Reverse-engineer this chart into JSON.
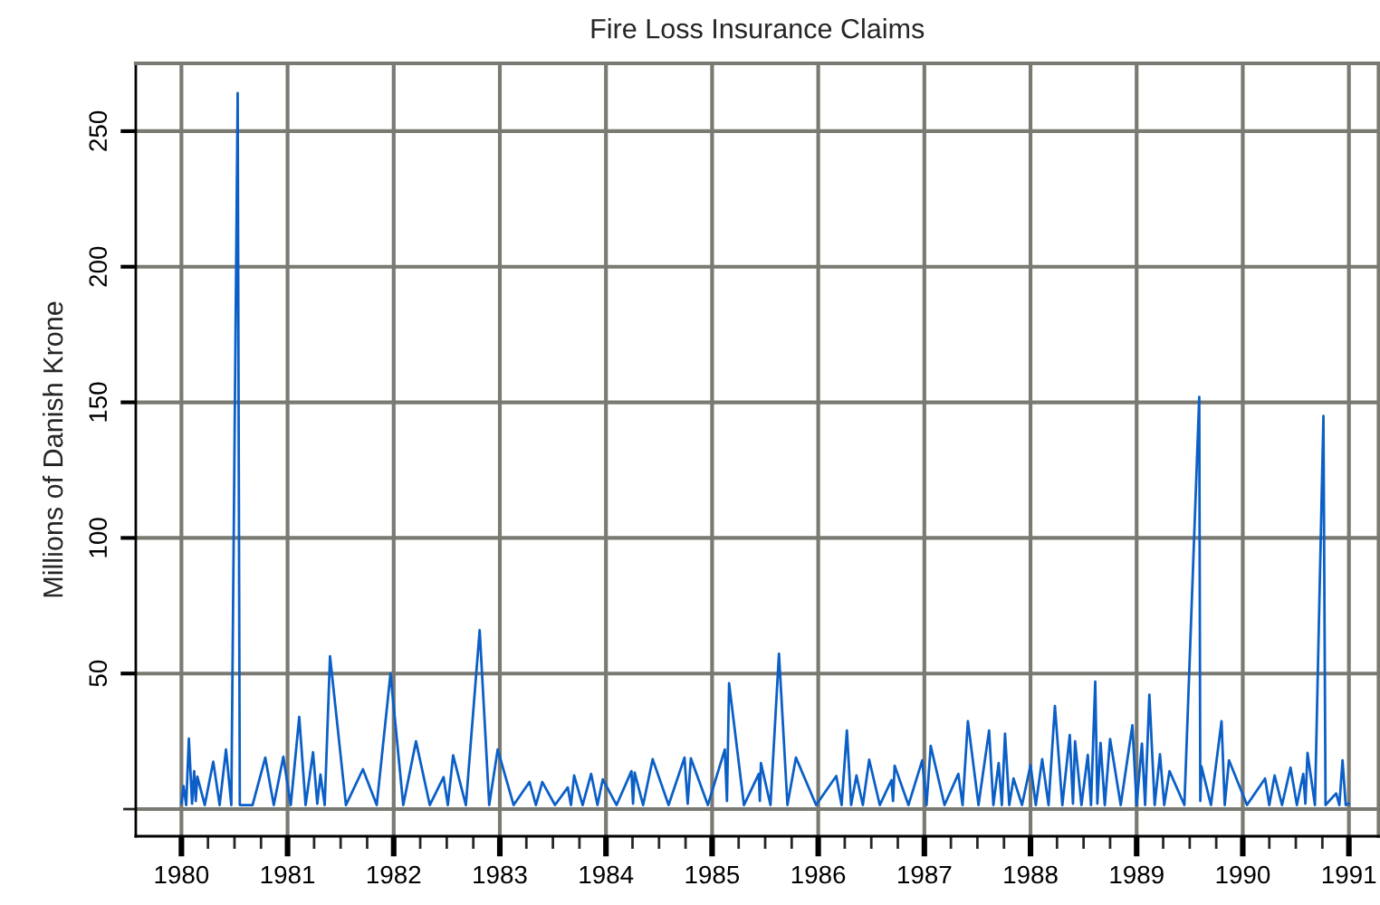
{
  "chart_data": {
    "type": "line",
    "title": "Fire Loss Insurance Claims",
    "ylabel": "Millions of Danish Krone",
    "xlim": [
      1979.57,
      1991.28
    ],
    "ylim": [
      -10,
      275
    ],
    "xticks": [
      {
        "value": 1980,
        "label": "1980"
      },
      {
        "value": 1980.25,
        "label": null
      },
      {
        "value": 1980.5,
        "label": null
      },
      {
        "value": 1980.75,
        "label": null
      },
      {
        "value": 1981,
        "label": "1981"
      },
      {
        "value": 1981.25,
        "label": null
      },
      {
        "value": 1981.5,
        "label": null
      },
      {
        "value": 1981.75,
        "label": null
      },
      {
        "value": 1982,
        "label": "1982"
      },
      {
        "value": 1982.25,
        "label": null
      },
      {
        "value": 1982.5,
        "label": null
      },
      {
        "value": 1982.75,
        "label": null
      },
      {
        "value": 1983,
        "label": "1983"
      },
      {
        "value": 1983.25,
        "label": null
      },
      {
        "value": 1983.5,
        "label": null
      },
      {
        "value": 1983.75,
        "label": null
      },
      {
        "value": 1984,
        "label": "1984"
      },
      {
        "value": 1984.25,
        "label": null
      },
      {
        "value": 1984.5,
        "label": null
      },
      {
        "value": 1984.75,
        "label": null
      },
      {
        "value": 1985,
        "label": "1985"
      },
      {
        "value": 1985.25,
        "label": null
      },
      {
        "value": 1985.5,
        "label": null
      },
      {
        "value": 1985.75,
        "label": null
      },
      {
        "value": 1986,
        "label": "1986"
      },
      {
        "value": 1986.25,
        "label": null
      },
      {
        "value": 1986.5,
        "label": null
      },
      {
        "value": 1986.75,
        "label": null
      },
      {
        "value": 1987,
        "label": "1987"
      },
      {
        "value": 1987.25,
        "label": null
      },
      {
        "value": 1987.5,
        "label": null
      },
      {
        "value": 1987.75,
        "label": null
      },
      {
        "value": 1988,
        "label": "1988"
      },
      {
        "value": 1988.25,
        "label": null
      },
      {
        "value": 1988.5,
        "label": null
      },
      {
        "value": 1988.75,
        "label": null
      },
      {
        "value": 1989,
        "label": "1989"
      },
      {
        "value": 1989.25,
        "label": null
      },
      {
        "value": 1989.5,
        "label": null
      },
      {
        "value": 1989.75,
        "label": null
      },
      {
        "value": 1990,
        "label": "1990"
      },
      {
        "value": 1990.25,
        "label": null
      },
      {
        "value": 1990.5,
        "label": null
      },
      {
        "value": 1990.75,
        "label": null
      },
      {
        "value": 1991,
        "label": "1991"
      }
    ],
    "yticks": [
      {
        "value": 0,
        "label": null
      },
      50,
      100,
      150,
      200,
      250
    ],
    "grid": true,
    "legend": false,
    "marker": "none",
    "line_style": "solid",
    "series": [
      {
        "color": "#0b5fc6",
        "x": [
          1980.0,
          1980.02,
          1980.045,
          1980.07,
          1980.1,
          1980.12,
          1980.135,
          1980.15,
          1980.22,
          1980.3,
          1980.36,
          1980.42,
          1980.47,
          1980.53,
          1980.55,
          1980.67,
          1980.79,
          1980.87,
          1980.96,
          1981.03,
          1981.11,
          1981.17,
          1981.24,
          1981.28,
          1981.31,
          1981.35,
          1981.4,
          1981.55,
          1981.71,
          1981.84,
          1981.97,
          1982.09,
          1982.21,
          1982.34,
          1982.47,
          1982.51,
          1982.56,
          1982.68,
          1982.81,
          1982.9,
          1982.98,
          1983.13,
          1983.28,
          1983.34,
          1983.4,
          1983.52,
          1983.64,
          1983.67,
          1983.7,
          1983.78,
          1983.86,
          1983.92,
          1983.97,
          1984.1,
          1984.24,
          1984.255,
          1984.27,
          1984.35,
          1984.44,
          1984.59,
          1984.74,
          1984.77,
          1984.8,
          1984.96,
          1985.12,
          1985.14,
          1985.16,
          1985.3,
          1985.44,
          1985.45,
          1985.46,
          1985.55,
          1985.63,
          1985.71,
          1985.79,
          1985.98,
          1986.17,
          1986.22,
          1986.27,
          1986.31,
          1986.36,
          1986.42,
          1986.48,
          1986.58,
          1986.69,
          1986.705,
          1986.72,
          1986.85,
          1986.98,
          1987.02,
          1987.06,
          1987.19,
          1987.32,
          1987.36,
          1987.41,
          1987.51,
          1987.61,
          1987.65,
          1987.7,
          1987.73,
          1987.76,
          1987.8,
          1987.84,
          1987.92,
          1988.0,
          1988.05,
          1988.11,
          1988.17,
          1988.23,
          1988.3,
          1988.37,
          1988.4,
          1988.42,
          1988.48,
          1988.54,
          1988.57,
          1988.61,
          1988.63,
          1988.66,
          1988.7,
          1988.75,
          1988.85,
          1988.96,
          1989.0,
          1989.05,
          1989.08,
          1989.12,
          1989.17,
          1989.22,
          1989.26,
          1989.31,
          1989.45,
          1989.59,
          1989.6,
          1989.61,
          1989.7,
          1989.8,
          1989.83,
          1989.87,
          1990.04,
          1990.21,
          1990.25,
          1990.3,
          1990.37,
          1990.45,
          1990.51,
          1990.57,
          1990.59,
          1990.61,
          1990.68,
          1990.76,
          1990.78,
          1990.88,
          1990.91,
          1990.94,
          1990.97,
          1991.0
        ],
        "values": [
          2,
          8.5,
          1.5,
          26,
          2,
          14,
          3,
          12,
          1.5,
          17.5,
          1.5,
          22,
          1.5,
          264,
          1.5,
          1.5,
          19,
          1.5,
          19.3,
          1.5,
          34,
          1.5,
          21,
          2,
          12.7,
          1.5,
          56.4,
          1.5,
          14.7,
          1.5,
          50,
          1.5,
          25,
          1.5,
          11.8,
          1.5,
          19.8,
          1.5,
          66,
          1.5,
          22,
          1.5,
          10,
          1.5,
          10,
          1.5,
          8,
          1.5,
          12.4,
          1.5,
          13,
          1.5,
          11,
          1.5,
          14,
          2,
          13.5,
          1.5,
          18.4,
          1.5,
          19,
          2,
          18.7,
          1.5,
          22,
          3,
          46.4,
          1.5,
          13,
          3,
          17,
          1.5,
          57.3,
          1.5,
          19,
          1.5,
          12.2,
          1.5,
          29,
          1.5,
          12.4,
          1.5,
          18.2,
          1.5,
          10.7,
          3,
          16,
          1.5,
          18,
          1.5,
          23.3,
          1.5,
          13,
          1.5,
          32.4,
          1.5,
          29,
          1.5,
          17,
          1.5,
          27.8,
          1.5,
          11.3,
          1.5,
          16.2,
          1.5,
          18.4,
          1.5,
          38,
          1.5,
          27.3,
          2,
          25,
          1.5,
          20,
          1.5,
          47,
          2,
          24.4,
          1.5,
          25.8,
          1.5,
          30.9,
          1.5,
          24.2,
          1.5,
          42.2,
          1.5,
          20.2,
          1.5,
          14,
          1.5,
          152,
          3,
          15.8,
          1.5,
          32.4,
          1.5,
          18,
          1.5,
          11.3,
          1.5,
          12.4,
          1.5,
          15.3,
          1.5,
          13,
          2,
          20.7,
          1.5,
          145,
          1.5,
          5.8,
          1.5,
          18,
          1.5,
          2
        ]
      }
    ]
  }
}
